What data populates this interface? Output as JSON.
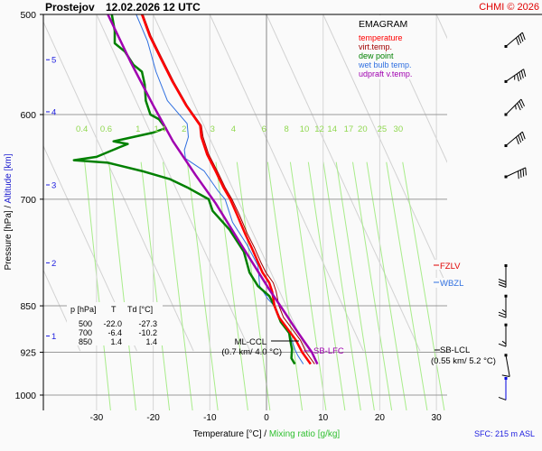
{
  "header": {
    "station": "Prostejov",
    "datetime": "12.02.2026 12 UTC",
    "copyright": "CHMI © 2026"
  },
  "legend": {
    "title": "EMAGRAM",
    "items": [
      {
        "label": "temperature",
        "color": "#ff0000"
      },
      {
        "label": "virt.temp.",
        "color": "#a00000"
      },
      {
        "label": "dew point",
        "color": "#008000"
      },
      {
        "label": "wet bulb temp.",
        "color": "#3070e0"
      },
      {
        "label": "udpraft v.temp.",
        "color": "#a000b0"
      }
    ]
  },
  "table": {
    "headers": [
      "p [hPa]",
      "T",
      "Td [°C]"
    ],
    "rows": [
      [
        "500",
        "-22.0",
        "-27.3"
      ],
      [
        "700",
        "-6.4",
        "-10.2"
      ],
      [
        "850",
        "1.4",
        "1.4"
      ]
    ]
  },
  "annotations": {
    "ml_ccl": {
      "label": "ML-CCL",
      "detail": "(0.7 km/ 4.0 °C)"
    },
    "sb_lfc": {
      "label": "SB-LFC"
    },
    "sb_lcl": {
      "label": "SB-LCL",
      "detail": "(0.55 km/ 5.2 °C)"
    },
    "fzlv": {
      "label": "FZLV"
    },
    "wbzl": {
      "label": "WBZL"
    }
  },
  "footer": {
    "sfc": "SFC: 215 m ASL"
  },
  "chart_data": {
    "type": "line",
    "title": "Prostejov 12.02.2026 12 UTC",
    "xlabel": "Temperature [°C]",
    "xlabel2": "Mixing ratio [g/kg]",
    "ylabel": "Pressure [hPa]",
    "ylabel2": "Altitude [km]",
    "xlim": [
      -39,
      32
    ],
    "ylim": [
      1000,
      500
    ],
    "x_ticks": [
      "-30",
      "-20",
      "-10",
      "0",
      "10",
      "20",
      "30"
    ],
    "x_tick_values": [
      -30,
      -20,
      -10,
      0,
      10,
      20,
      30
    ],
    "y_ticks": [
      "500",
      "600",
      "700",
      "850",
      "925",
      "1000"
    ],
    "y_tick_values": [
      500,
      600,
      700,
      850,
      925,
      1000
    ],
    "altitude_ticks": [
      {
        "label": "5",
        "p": 543
      },
      {
        "label": "4",
        "p": 597
      },
      {
        "label": "3",
        "p": 682
      },
      {
        "label": "2",
        "p": 786
      },
      {
        "label": "1",
        "p": 898
      }
    ],
    "mixing_ratio_labels": [
      "0.4",
      "0.6",
      "1",
      "1.4",
      "2",
      "3",
      "4",
      "6",
      "8",
      "10",
      "12",
      "14",
      "17",
      "20",
      "25",
      "30"
    ],
    "mixing_ratio_values": [
      0.4,
      0.6,
      1,
      1.4,
      2,
      3,
      4,
      6,
      8,
      10,
      12,
      14,
      17,
      20,
      25,
      30
    ],
    "series": [
      {
        "name": "temperature",
        "color": "#ff0000",
        "points": [
          [
            -22.0,
            500
          ],
          [
            -20.6,
            520
          ],
          [
            -18.8,
            540
          ],
          [
            -16.6,
            565
          ],
          [
            -14.2,
            590
          ],
          [
            -11.7,
            612
          ],
          [
            -11.5,
            625
          ],
          [
            -10.5,
            645
          ],
          [
            -9.0,
            665
          ],
          [
            -7.6,
            685
          ],
          [
            -6.4,
            700
          ],
          [
            -5.2,
            720
          ],
          [
            -3.8,
            745
          ],
          [
            -2.6,
            765
          ],
          [
            -1.5,
            785
          ],
          [
            -0.7,
            800
          ],
          [
            0.5,
            815
          ],
          [
            1.0,
            828
          ],
          [
            1.4,
            850
          ],
          [
            2.2,
            868
          ],
          [
            3.6,
            885
          ],
          [
            5.2,
            905
          ],
          [
            6.3,
            925
          ],
          [
            7.8,
            945
          ]
        ]
      },
      {
        "name": "virt.temp.",
        "color": "#a00000",
        "points": [
          [
            -21.8,
            500
          ],
          [
            -20.4,
            520
          ],
          [
            -18.6,
            540
          ],
          [
            -16.4,
            565
          ],
          [
            -14.0,
            590
          ],
          [
            -11.5,
            612
          ],
          [
            -11.2,
            625
          ],
          [
            -10.2,
            645
          ],
          [
            -8.7,
            665
          ],
          [
            -7.3,
            685
          ],
          [
            -6.1,
            700
          ],
          [
            -4.8,
            720
          ],
          [
            -3.4,
            745
          ],
          [
            -2.1,
            765
          ],
          [
            -1.0,
            785
          ],
          [
            -0.1,
            800
          ],
          [
            1.2,
            815
          ],
          [
            1.7,
            828
          ],
          [
            2.2,
            850
          ],
          [
            3.0,
            868
          ],
          [
            4.4,
            885
          ],
          [
            6.0,
            905
          ],
          [
            7.0,
            925
          ],
          [
            8.5,
            945
          ]
        ]
      },
      {
        "name": "dew point",
        "color": "#008000",
        "points": [
          [
            -27.3,
            500
          ],
          [
            -26.8,
            515
          ],
          [
            -26.8,
            527
          ],
          [
            -25.0,
            535
          ],
          [
            -23.5,
            548
          ],
          [
            -22.0,
            555
          ],
          [
            -21.5,
            568
          ],
          [
            -21.3,
            585
          ],
          [
            -20.5,
            600
          ],
          [
            -19.0,
            605
          ],
          [
            -17.8,
            615
          ],
          [
            -20.0,
            620
          ],
          [
            -27.0,
            630
          ],
          [
            -24.5,
            633
          ],
          [
            -26.0,
            637
          ],
          [
            -30.0,
            648
          ],
          [
            -34.0,
            652
          ],
          [
            -28.0,
            655
          ],
          [
            -22.0,
            665
          ],
          [
            -17.0,
            675
          ],
          [
            -14.0,
            685
          ],
          [
            -10.2,
            700
          ],
          [
            -9.5,
            715
          ],
          [
            -6.5,
            740
          ],
          [
            -4.0,
            770
          ],
          [
            -3.0,
            800
          ],
          [
            -1.5,
            820
          ],
          [
            0.5,
            835
          ],
          [
            1.4,
            850
          ],
          [
            2.5,
            875
          ],
          [
            4.0,
            893
          ],
          [
            4.2,
            905
          ],
          [
            4.5,
            920
          ],
          [
            4.4,
            935
          ],
          [
            5.0,
            945
          ]
        ]
      },
      {
        "name": "wet bulb temp.",
        "color": "#3070e0",
        "points": [
          [
            -23.0,
            500
          ],
          [
            -21.0,
            525
          ],
          [
            -19.5,
            555
          ],
          [
            -17.5,
            585
          ],
          [
            -14.0,
            610
          ],
          [
            -13.8,
            625
          ],
          [
            -14.5,
            640
          ],
          [
            -14.3,
            650
          ],
          [
            -11.0,
            665
          ],
          [
            -8.5,
            690
          ],
          [
            -7.3,
            700
          ],
          [
            -6.0,
            730
          ],
          [
            -3.5,
            760
          ],
          [
            -1.5,
            790
          ],
          [
            -1.2,
            820
          ],
          [
            0.3,
            840
          ],
          [
            1.4,
            850
          ],
          [
            3.0,
            880
          ],
          [
            4.3,
            900
          ],
          [
            5.0,
            920
          ],
          [
            5.5,
            930
          ],
          [
            6.5,
            945
          ]
        ]
      },
      {
        "name": "udpraft v.temp.",
        "color": "#a000b0",
        "points": [
          [
            -28.0,
            500
          ],
          [
            -24.0,
            545
          ],
          [
            -20.0,
            590
          ],
          [
            -16.5,
            630
          ],
          [
            -12.5,
            670
          ],
          [
            -9.0,
            705
          ],
          [
            -4.5,
            760
          ],
          [
            0.5,
            825
          ],
          [
            3.2,
            860
          ],
          [
            5.0,
            885
          ],
          [
            6.5,
            905
          ],
          [
            8.0,
            925
          ],
          [
            9.0,
            945
          ]
        ]
      }
    ],
    "wind_barbs": [
      {
        "p": 530,
        "dir": 230,
        "speed_kt": 40
      },
      {
        "p": 565,
        "dir": 235,
        "speed_kt": 45
      },
      {
        "p": 600,
        "dir": 225,
        "speed_kt": 35
      },
      {
        "p": 635,
        "dir": 230,
        "speed_kt": 40
      },
      {
        "p": 672,
        "dir": 245,
        "speed_kt": 40
      },
      {
        "p": 790,
        "dir": 360,
        "speed_kt": 30
      },
      {
        "p": 835,
        "dir": 360,
        "speed_kt": 25
      },
      {
        "p": 880,
        "dir": 360,
        "speed_kt": 15
      },
      {
        "p": 930,
        "dir": 350,
        "speed_kt": 10
      },
      {
        "p": 970,
        "dir": 360,
        "speed_kt": 10
      }
    ],
    "levels": {
      "ml_ccl": {
        "p": 912,
        "t": 4.0
      },
      "sb_lfc": {
        "p": 925
      },
      "sb_lcl": {
        "p": 925
      },
      "fzlv": {
        "p": 790
      },
      "wbzl": {
        "p": 830
      }
    },
    "grid": true,
    "legend_position": "top-right"
  }
}
